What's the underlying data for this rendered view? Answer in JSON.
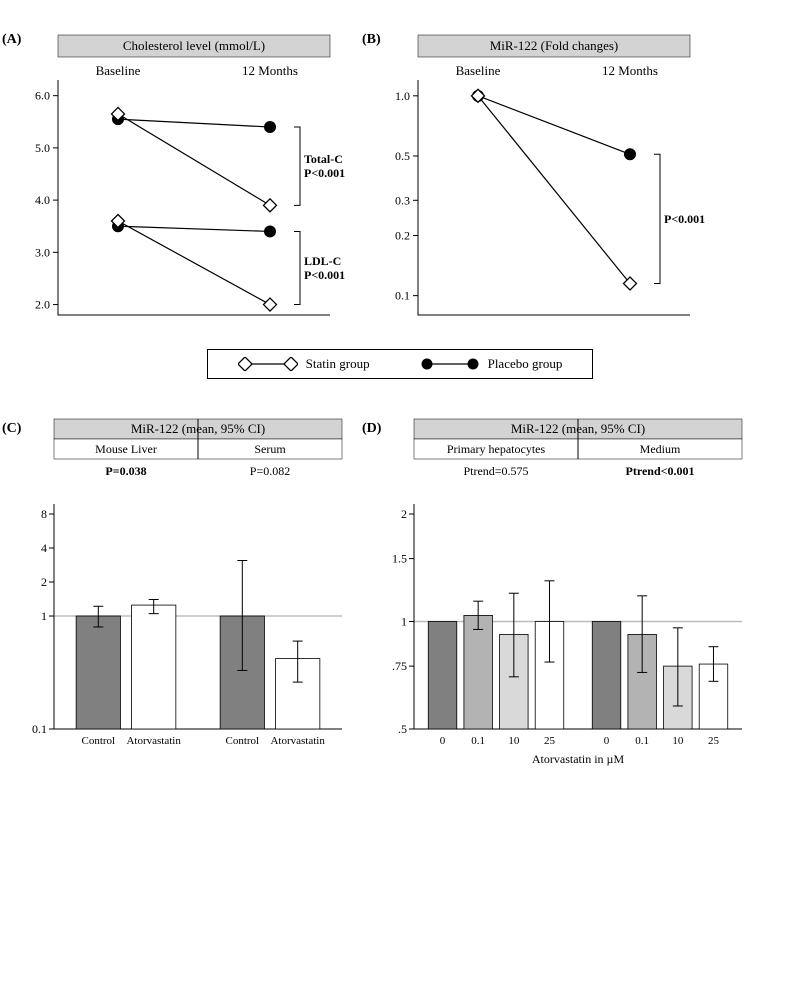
{
  "panelA": {
    "letter": "(A)",
    "title": "Cholesterol level (mmol/L)",
    "x_labels": [
      "Baseline",
      "12 Months"
    ],
    "y_ticks": [
      2.0,
      3.0,
      4.0,
      5.0,
      6.0
    ],
    "ylim": [
      1.8,
      6.3
    ],
    "statin_totalc": [
      5.65,
      3.9
    ],
    "placebo_totalc": [
      5.55,
      5.4
    ],
    "statin_ldlc": [
      3.6,
      2.0
    ],
    "placebo_ldlc": [
      3.5,
      3.4
    ],
    "annot1_l1": "Total-C",
    "annot1_l2": "P<0.001",
    "annot2_l1": "LDL-C",
    "annot2_l2": "P<0.001"
  },
  "panelB": {
    "letter": "(B)",
    "title": "MiR-122 (Fold changes)",
    "x_labels": [
      "Baseline",
      "12 Months"
    ],
    "y_ticks": [
      0.1,
      0.2,
      0.3,
      0.5,
      1.0
    ],
    "ylim_log": [
      0.08,
      1.2
    ],
    "statin": [
      1.0,
      0.115
    ],
    "placebo": [
      1.0,
      0.51
    ],
    "annot": "P<0.001"
  },
  "legend": {
    "statin": "Statin group",
    "placebo": "Placebo group"
  },
  "panelC": {
    "letter": "(C)",
    "title": "MiR-122 (mean, 95% CI)",
    "sub_labels": [
      "Mouse Liver",
      "Serum"
    ],
    "p_vals": [
      "P=0.038",
      "P=0.082"
    ],
    "p_bold": [
      true,
      false
    ],
    "y_ticks": [
      0.1,
      1,
      2,
      4,
      8
    ],
    "ylim_log": [
      0.1,
      8
    ],
    "groups": [
      "Control",
      "Atorvastatin",
      "Control",
      "Atorvastatin"
    ],
    "means": [
      1.0,
      1.25,
      1.0,
      0.42
    ],
    "ci_lo": [
      0.8,
      1.05,
      0.33,
      0.26
    ],
    "ci_hi": [
      1.22,
      1.4,
      3.1,
      0.6
    ],
    "fills": [
      "dark",
      "white",
      "dark",
      "white"
    ]
  },
  "panelD": {
    "letter": "(D)",
    "title": "MiR-122 (mean, 95% CI)",
    "sub_labels": [
      "Primary hepatocytes",
      "Medium"
    ],
    "p_vals": [
      "Ptrend=0.575",
      "Ptrend<0.001"
    ],
    "p_bold": [
      false,
      true
    ],
    "y_ticks": [
      0.5,
      0.75,
      1,
      1.5,
      2
    ],
    "y_tick_labels": [
      ".5",
      ".75",
      "1",
      "1.5",
      "2"
    ],
    "ylim_log": [
      0.5,
      2
    ],
    "x_title": "Atorvastatin in µM",
    "doses": [
      "0",
      "0.1",
      "10",
      "25",
      "0",
      "0.1",
      "10",
      "25"
    ],
    "means": [
      1.0,
      1.04,
      0.92,
      1.0,
      1.0,
      0.92,
      0.75,
      0.76
    ],
    "ci_lo": [
      1.0,
      0.95,
      0.7,
      0.77,
      1.0,
      0.72,
      0.58,
      0.68
    ],
    "ci_hi": [
      1.0,
      1.14,
      1.2,
      1.3,
      1.0,
      1.18,
      0.96,
      0.85
    ],
    "fills": [
      "dark",
      "med",
      "light",
      "white",
      "dark",
      "med",
      "light",
      "white"
    ]
  }
}
